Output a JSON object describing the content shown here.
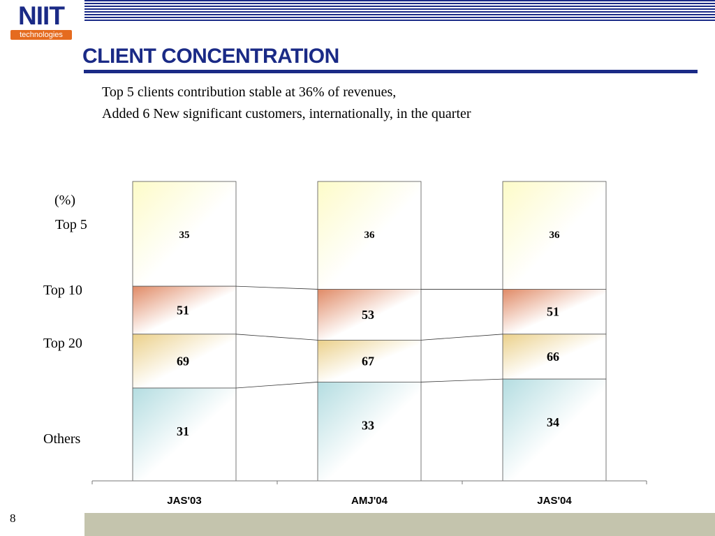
{
  "logo": {
    "main": "NIIT",
    "sub": "technologies"
  },
  "header": {
    "title": "CLIENT CONCENTRATION",
    "subtitle_lines": [
      "Top 5 clients contribution stable at 36% of revenues,",
      "Added 6 New significant customers, internationally, in the quarter"
    ]
  },
  "footer": {
    "page_number": "8"
  },
  "colors": {
    "brand_navy": "#1a2a86",
    "logo_orange": "#e56b1f",
    "footer_gray": "#c4c4ad",
    "top5_fill": "#fdfbc8",
    "top10_fill": "#e08a66",
    "top20_fill": "#ebd08a",
    "others_fill": "#b4dde1"
  },
  "chart_data": {
    "type": "bar",
    "ylabel": "(%)",
    "categories": [
      "JAS'03",
      "AMJ'04",
      "JAS'04"
    ],
    "series": [
      {
        "name": "Top 5",
        "values": [
          35,
          36,
          36
        ]
      },
      {
        "name": "Top 10",
        "values": [
          51,
          53,
          51
        ]
      },
      {
        "name": "Top 20",
        "values": [
          69,
          67,
          66
        ]
      },
      {
        "name": "Others",
        "values": [
          31,
          33,
          34
        ]
      }
    ],
    "ylim": [
      0,
      100
    ],
    "grid": false,
    "legend": "left"
  }
}
